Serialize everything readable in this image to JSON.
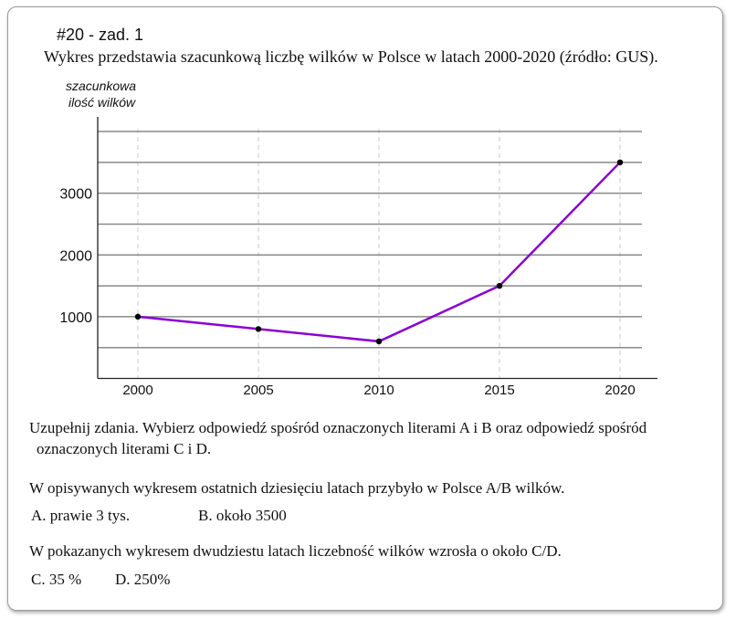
{
  "header": {
    "task_number": "#20 - zad. 1",
    "description": "Wykres przedstawia szacunkową liczbę wilków w Polsce w latach 2000-2020 (źródło: GUS)."
  },
  "chart_data": {
    "type": "line",
    "title": "",
    "ylabel_line1": "szacunkowa",
    "ylabel_line2": "ilość wilków",
    "xlabel": "",
    "x": [
      2000,
      2005,
      2010,
      2015,
      2020
    ],
    "x_tick_labels": [
      "2000",
      "2005",
      "2010",
      "2015",
      "2020"
    ],
    "series": [
      {
        "name": "wilki",
        "values": [
          1000,
          800,
          600,
          1500,
          3500
        ],
        "color": "#8b00d4"
      }
    ],
    "y_ticks": [
      1000,
      2000,
      3000
    ],
    "y_tick_labels": [
      "1000",
      "2000",
      "3000"
    ],
    "y_gridlines": [
      500,
      1000,
      1500,
      2000,
      2500,
      3000,
      3500,
      4000
    ],
    "ylim": [
      0,
      4000
    ],
    "xlim": [
      2000,
      2020
    ],
    "grid": true
  },
  "question": {
    "instruction_line1": "Uzupełnij zdania. Wybierz odpowiedź spośród oznaczonych literami A i B oraz odpowiedź spośród",
    "instruction_line2": "oznaczonych literami C i D.",
    "sentence1": "W opisywanych wykresem ostatnich dziesięciu latach przybyło w Polsce A/B wilków.",
    "option_a": "A. prawie 3 tys.",
    "option_b": "B. około 3500",
    "sentence2": "W pokazanych wykresem dwudziestu latach liczebność wilków wzrosła o około C/D.",
    "option_c": "C. 35 %",
    "option_d": "D. 250%"
  }
}
